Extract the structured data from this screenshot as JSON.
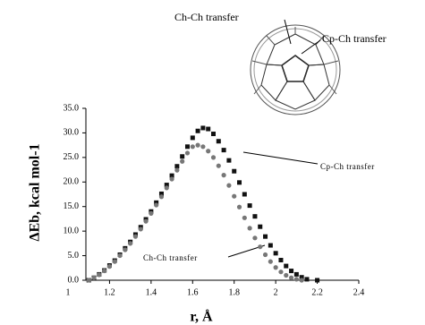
{
  "chart_data": {
    "type": "scatter",
    "top_labels": [
      "Ch-Ch transfer",
      "Cp-Ch transfer"
    ],
    "x_label": "r, Å",
    "y_label": "ΔEb, kcal mol-1",
    "annotations": [
      "Cp-Ch transfer",
      "Ch-Ch transfer"
    ],
    "xlim": [
      1,
      2.4
    ],
    "xticks": [
      1,
      1.2,
      1.4,
      1.6,
      1.8,
      2,
      2.2,
      2.4
    ],
    "ylim": [
      0,
      35
    ],
    "yticks": [
      {
        "value": 0,
        "label": "0.0"
      },
      {
        "value": 5,
        "label": "5.0"
      },
      {
        "value": 10,
        "label": "10.0"
      },
      {
        "value": 15,
        "label": "15.0"
      },
      {
        "value": 20,
        "label": "20.0"
      },
      {
        "value": 25,
        "label": "25.0"
      },
      {
        "value": 30,
        "label": "30.0"
      },
      {
        "value": 35,
        "label": "35.0"
      }
    ],
    "series": [
      {
        "marker": "square",
        "color": "#111111",
        "x": [
          1.1,
          1.125,
          1.15,
          1.175,
          1.2,
          1.225,
          1.25,
          1.275,
          1.3,
          1.325,
          1.35,
          1.375,
          1.4,
          1.425,
          1.45,
          1.475,
          1.5,
          1.525,
          1.55,
          1.575,
          1.6,
          1.625,
          1.65,
          1.675,
          1.7,
          1.725,
          1.75,
          1.775,
          1.8,
          1.825,
          1.85,
          1.875,
          1.9,
          1.925,
          1.95,
          1.975,
          2.0,
          2.025,
          2.05,
          2.075,
          2.1,
          2.125,
          2.15,
          2.2
        ],
        "values": [
          0,
          0.5,
          1.2,
          2.0,
          3.0,
          4.0,
          5.2,
          6.5,
          7.8,
          9.3,
          10.8,
          12.4,
          14.0,
          15.8,
          17.6,
          19.4,
          21.3,
          23.2,
          25.2,
          27.2,
          29.0,
          30.4,
          31.0,
          30.8,
          29.8,
          28.3,
          26.5,
          24.4,
          22.2,
          19.9,
          17.5,
          15.2,
          13.0,
          10.9,
          8.9,
          7.1,
          5.5,
          4.1,
          2.9,
          1.9,
          1.2,
          0.6,
          0.2,
          0.0
        ]
      },
      {
        "marker": "circle",
        "color": "#777777",
        "x": [
          1.1,
          1.125,
          1.15,
          1.175,
          1.2,
          1.225,
          1.25,
          1.275,
          1.3,
          1.325,
          1.35,
          1.375,
          1.4,
          1.425,
          1.45,
          1.475,
          1.5,
          1.525,
          1.55,
          1.575,
          1.6,
          1.625,
          1.65,
          1.675,
          1.7,
          1.725,
          1.75,
          1.775,
          1.8,
          1.825,
          1.85,
          1.875,
          1.9,
          1.925,
          1.95,
          1.975,
          2.0,
          2.025,
          2.05,
          2.075,
          2.1,
          2.125
        ],
        "values": [
          0,
          0.5,
          1.1,
          1.9,
          2.8,
          3.8,
          5.0,
          6.2,
          7.5,
          8.9,
          10.4,
          12.0,
          13.6,
          15.3,
          17.0,
          18.8,
          20.6,
          22.4,
          24.2,
          25.9,
          27.2,
          27.5,
          27.2,
          26.3,
          25.0,
          23.3,
          21.4,
          19.3,
          17.1,
          14.9,
          12.7,
          10.6,
          8.6,
          6.8,
          5.2,
          3.8,
          2.6,
          1.7,
          1.0,
          0.5,
          0.2,
          0.0
        ]
      }
    ]
  }
}
